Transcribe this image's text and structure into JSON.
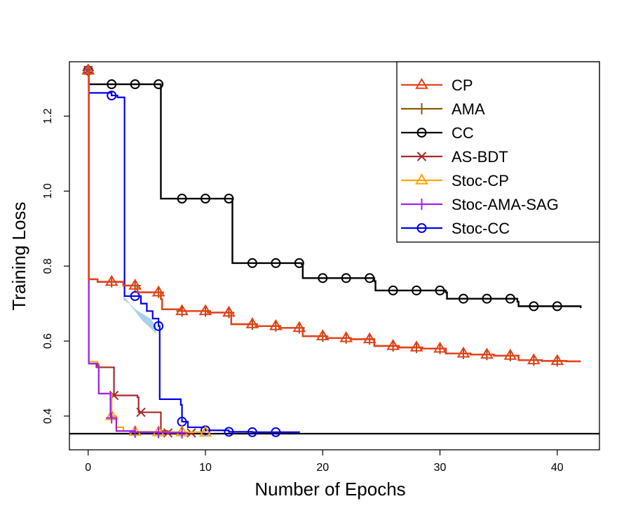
{
  "chart_data": {
    "type": "line",
    "title": "",
    "xlabel": "Number of Epochs",
    "ylabel": "Training Loss",
    "xlim": [
      -1.6,
      43.6
    ],
    "ylim": [
      0.31,
      1.345
    ],
    "xticks": [
      0,
      10,
      20,
      30,
      40
    ],
    "yticks": [
      0.4,
      0.6,
      0.8,
      1.0,
      1.2
    ],
    "ytick_labels": [
      "0.4",
      "0.6",
      "0.8",
      "1.0",
      "1.2"
    ],
    "reference_line": 0.353,
    "legend_position": "top-right",
    "series": [
      {
        "name": "CP",
        "color": "#E8401C",
        "marker": "triangle",
        "step": true,
        "points": [
          [
            0,
            1.322
          ],
          [
            0.05,
            0.765
          ],
          [
            0.8,
            0.758
          ],
          [
            3,
            0.748
          ],
          [
            4.2,
            0.73
          ],
          [
            6.2,
            0.712
          ],
          [
            6.3,
            0.685
          ],
          [
            8,
            0.68
          ],
          [
            10.2,
            0.676
          ],
          [
            12.2,
            0.645
          ],
          [
            14.3,
            0.64
          ],
          [
            16.3,
            0.635
          ],
          [
            18.3,
            0.613
          ],
          [
            20.3,
            0.608
          ],
          [
            22.4,
            0.605
          ],
          [
            24.4,
            0.587
          ],
          [
            26.5,
            0.583
          ],
          [
            28.5,
            0.58
          ],
          [
            30.5,
            0.567
          ],
          [
            32.6,
            0.564
          ],
          [
            34.6,
            0.561
          ],
          [
            36.7,
            0.549
          ],
          [
            38.7,
            0.547
          ],
          [
            40.8,
            0.546
          ],
          [
            42,
            0.546
          ]
        ],
        "marker_x": [
          0,
          2,
          4,
          6,
          8,
          10,
          12,
          14,
          16,
          18,
          20,
          22,
          24,
          26,
          28,
          30,
          32,
          34,
          36,
          38,
          40
        ]
      },
      {
        "name": "AMA",
        "color": "#8B5A00",
        "marker": "plus",
        "step": true,
        "points": [
          [
            0,
            1.322
          ],
          [
            0.05,
            0.765
          ],
          [
            0.8,
            0.758
          ],
          [
            3,
            0.748
          ],
          [
            4.2,
            0.73
          ],
          [
            6.2,
            0.712
          ],
          [
            6.3,
            0.685
          ],
          [
            8,
            0.68
          ],
          [
            10.2,
            0.676
          ],
          [
            12.2,
            0.645
          ],
          [
            14.3,
            0.64
          ],
          [
            16.3,
            0.635
          ],
          [
            18.3,
            0.613
          ],
          [
            20.3,
            0.608
          ],
          [
            22.4,
            0.605
          ],
          [
            24.4,
            0.587
          ],
          [
            26.5,
            0.583
          ],
          [
            28.5,
            0.58
          ],
          [
            30.5,
            0.567
          ],
          [
            32.6,
            0.564
          ],
          [
            34.6,
            0.561
          ],
          [
            36.7,
            0.549
          ],
          [
            38.7,
            0.547
          ],
          [
            40.8,
            0.546
          ],
          [
            42,
            0.546
          ]
        ],
        "marker_x": [
          0,
          2,
          4,
          6,
          8,
          10,
          12,
          14,
          16,
          18,
          20,
          22,
          24,
          26,
          28,
          30,
          32,
          34,
          36,
          38,
          40
        ]
      },
      {
        "name": "CC",
        "color": "#000000",
        "marker": "circle",
        "step": true,
        "points": [
          [
            0,
            1.322
          ],
          [
            0.05,
            1.285
          ],
          [
            6.1,
            1.285
          ],
          [
            6.2,
            0.98
          ],
          [
            12.2,
            0.98
          ],
          [
            12.3,
            0.808
          ],
          [
            18.2,
            0.805
          ],
          [
            18.3,
            0.768
          ],
          [
            24.4,
            0.76
          ],
          [
            24.5,
            0.735
          ],
          [
            30.5,
            0.73
          ],
          [
            30.6,
            0.713
          ],
          [
            36.6,
            0.705
          ],
          [
            36.7,
            0.693
          ],
          [
            42,
            0.688
          ]
        ],
        "marker_x": [
          0,
          2,
          4,
          6,
          8,
          10,
          12,
          14,
          16,
          18,
          20,
          22,
          24,
          26,
          28,
          30,
          32,
          34,
          36,
          38,
          40
        ]
      },
      {
        "name": "AS-BDT",
        "color": "#A52A2A",
        "marker": "x",
        "step": true,
        "points": [
          [
            0,
            1.322
          ],
          [
            0.05,
            0.54
          ],
          [
            0.7,
            0.53
          ],
          [
            2,
            0.53
          ],
          [
            2.2,
            0.455
          ],
          [
            4.2,
            0.45
          ],
          [
            4.3,
            0.41
          ],
          [
            5.8,
            0.41
          ],
          [
            6.2,
            0.36
          ],
          [
            6.8,
            0.355
          ],
          [
            9,
            0.355
          ]
        ],
        "marker_x": [
          0,
          2.2,
          4.5,
          6.8,
          8.8
        ]
      },
      {
        "name": "Stoc-CP",
        "color": "#FFA500",
        "marker": "triangle",
        "step": true,
        "points": [
          [
            0,
            1.322
          ],
          [
            0.05,
            0.545
          ],
          [
            0.8,
            0.54
          ],
          [
            0.9,
            0.46
          ],
          [
            1.9,
            0.46
          ],
          [
            2,
            0.4
          ],
          [
            2.4,
            0.37
          ],
          [
            3,
            0.36
          ],
          [
            4,
            0.358
          ],
          [
            6,
            0.357
          ],
          [
            10,
            0.356
          ]
        ],
        "marker_x": [
          0,
          2,
          4,
          6,
          8,
          10
        ]
      },
      {
        "name": "Stoc-AMA-SAG",
        "color": "#A020F0",
        "marker": "plus",
        "step": true,
        "points": [
          [
            0,
            1.322
          ],
          [
            0.05,
            0.54
          ],
          [
            0.8,
            0.535
          ],
          [
            0.9,
            0.46
          ],
          [
            1.8,
            0.46
          ],
          [
            1.9,
            0.395
          ],
          [
            2.4,
            0.36
          ],
          [
            4,
            0.357
          ],
          [
            6,
            0.356
          ],
          [
            8,
            0.355
          ]
        ],
        "marker_x": [
          0,
          2,
          4,
          6,
          8
        ]
      },
      {
        "name": "Stoc-CC",
        "color": "#0000EE",
        "marker": "circle",
        "step": true,
        "points": [
          [
            0,
            1.322
          ],
          [
            0.05,
            1.262
          ],
          [
            2,
            1.255
          ],
          [
            2.5,
            1.25
          ],
          [
            3,
            1.25
          ],
          [
            3.1,
            0.72
          ],
          [
            4.5,
            0.7
          ],
          [
            5,
            0.68
          ],
          [
            5.5,
            0.66
          ],
          [
            6,
            0.64
          ],
          [
            6.1,
            0.445
          ],
          [
            7.9,
            0.43
          ],
          [
            8,
            0.385
          ],
          [
            8.5,
            0.37
          ],
          [
            10,
            0.362
          ],
          [
            12,
            0.358
          ],
          [
            14,
            0.357
          ],
          [
            18,
            0.356
          ]
        ],
        "marker_x": [
          0,
          2,
          4,
          6,
          8,
          10,
          12,
          14,
          16
        ],
        "band_color": "#A6D2EE"
      }
    ]
  }
}
